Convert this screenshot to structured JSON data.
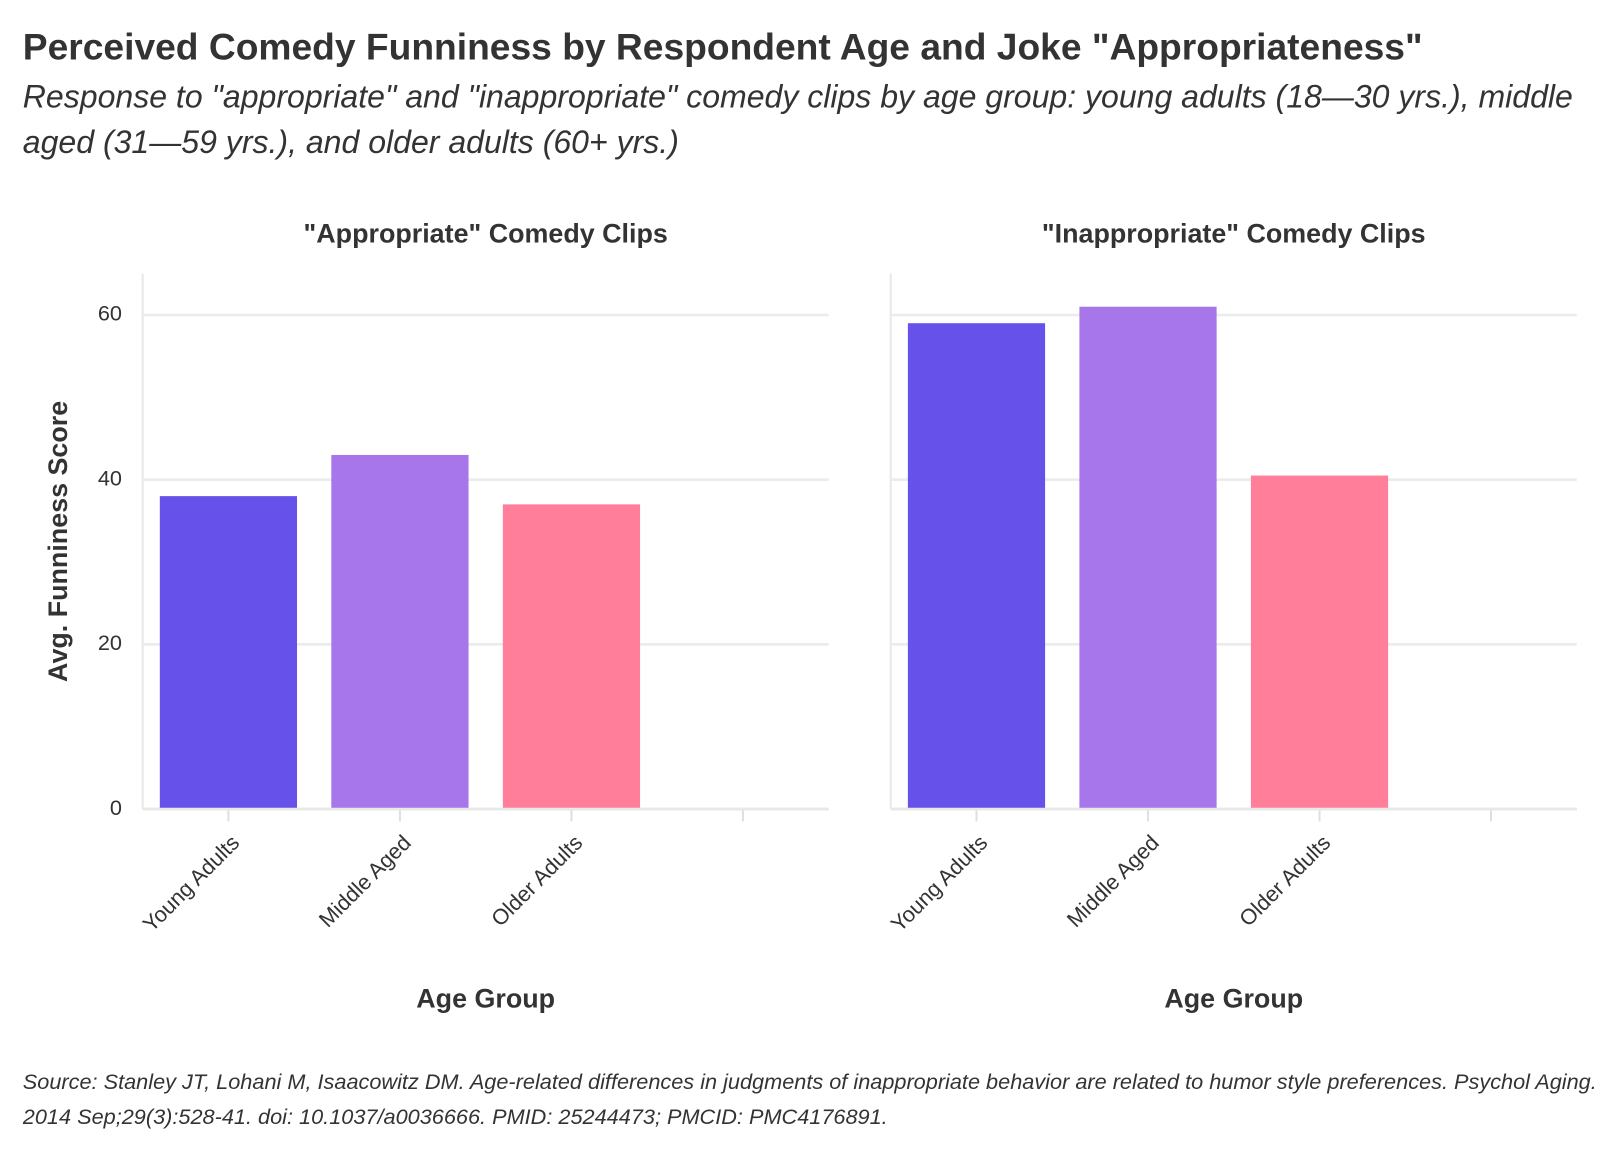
{
  "title": "Perceived Comedy Funniness by Respondent Age and Joke \"Appropriateness\"",
  "subtitle": "Response to \"appropriate\" and \"inappropriate\" comedy clips by age group: young adults (18—30 yrs.), middle aged (31—59 yrs.), and older adults (60+ yrs.)",
  "source": "Source: Stanley JT, Lohani M, Isaacowitz DM. Age-related differences in judgments of inappropriate behavior are related to humor style preferences. Psychol Aging. 2014 Sep;29(3):528-41. doi: 10.1037/a0036666. PMID: 25244473; PMCID: PMC4176891.",
  "chart_data": [
    {
      "type": "bar",
      "title": "\"Appropriate\" Comedy Clips",
      "categories": [
        "Young Adults",
        "Middle Aged",
        "Older Adults",
        null
      ],
      "values": [
        38,
        43,
        37,
        null
      ],
      "colors": [
        "#6652ea",
        "#a676ea",
        "#ff7f9a",
        null
      ],
      "xlabel": "Age Group",
      "ylabel": "Avg. Funniness Score",
      "ylim": [
        0,
        65
      ],
      "yticks": [
        0,
        20,
        40,
        60
      ],
      "grid": true,
      "ytick_labels": true
    },
    {
      "type": "bar",
      "title": "\"Inappropriate\" Comedy Clips",
      "categories": [
        "Young Adults",
        "Middle Aged",
        "Older Adults",
        null
      ],
      "values": [
        59,
        61,
        40.5,
        null
      ],
      "colors": [
        "#6652ea",
        "#a676ea",
        "#ff7f9a",
        null
      ],
      "xlabel": "Age Group",
      "ylim": [
        0,
        65
      ],
      "yticks": [
        0,
        20,
        40,
        60
      ],
      "grid": true,
      "ytick_labels": false
    }
  ]
}
